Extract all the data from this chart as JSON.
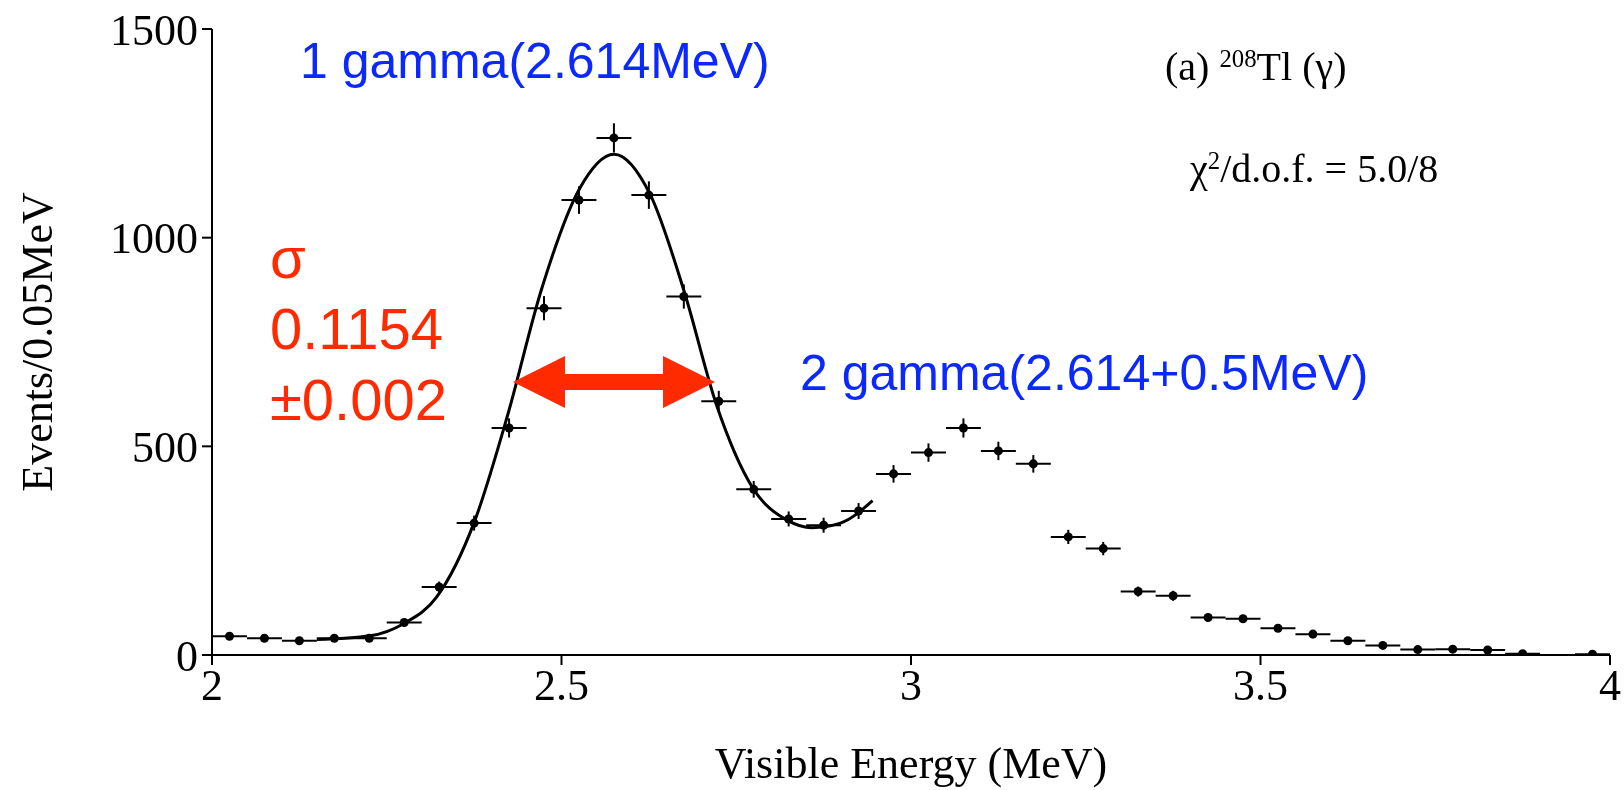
{
  "chart_data": {
    "type": "scatter",
    "xlabel": "Visible Energy (MeV)",
    "ylabel": "Events/0.05MeV",
    "annotations": [
      "1 gamma(2.614MeV)",
      "2 gamma(2.614+0.5MeV)",
      "(a)  $^{208}$Tl (γ)",
      "χ$^{2}$/d.o.f. = 5.0/8",
      "σ\n0.1154\n±0.002"
    ],
    "xlim": [
      2,
      4
    ],
    "ylim": [
      0,
      1500
    ],
    "xticks": [
      2,
      2.5,
      3,
      3.5,
      4
    ],
    "yticks": [
      0,
      500,
      1000,
      1500
    ],
    "series": [
      {
        "type": "scatter",
        "color": "#000000",
        "marker": "circle",
        "x": [
          2.025,
          2.075,
          2.125,
          2.175,
          2.225,
          2.275,
          2.325,
          2.375,
          2.425,
          2.475,
          2.525,
          2.575,
          2.625,
          2.675,
          2.725,
          2.775,
          2.825,
          2.875,
          2.925,
          2.975,
          3.025,
          3.075,
          3.125,
          3.175,
          3.225,
          3.275,
          3.325,
          3.375,
          3.425,
          3.475,
          3.525,
          3.575,
          3.625,
          3.675,
          3.725,
          3.775,
          3.825,
          3.875,
          3.925,
          3.975
        ],
        "values": [
          45,
          40,
          34,
          40,
          40,
          78,
          163,
          316,
          544,
          831,
          1090,
          1239,
          1102,
          859,
          608,
          397,
          326,
          311,
          345,
          434,
          485,
          544,
          489,
          458,
          283,
          255,
          152,
          142,
          90,
          87,
          64,
          50,
          34,
          23,
          13,
          14,
          12,
          3,
          null,
          2
        ],
        "errors": [
          7,
          6,
          6,
          6,
          6,
          9,
          13,
          18,
          23,
          29,
          33,
          35,
          33,
          29,
          25,
          20,
          18,
          18,
          19,
          21,
          22,
          23,
          22,
          21,
          17,
          16,
          12,
          12,
          9,
          9,
          8,
          7,
          6,
          5,
          4,
          4,
          3,
          2,
          null,
          1
        ],
        "xerrors": [
          0.025,
          0.025,
          0.025,
          0.025,
          0.025,
          0.025,
          0.025,
          0.025,
          0.025,
          0.025,
          0.025,
          0.025,
          0.025,
          0.025,
          0.025,
          0.025,
          0.025,
          0.025,
          0.025,
          0.025,
          0.025,
          0.025,
          0.025,
          0.025,
          0.025,
          0.025,
          0.025,
          0.025,
          0.025,
          0.025,
          0.025,
          0.025,
          0.025,
          0.025,
          0.025,
          0.025,
          0.025,
          0.025,
          null,
          0.025
        ]
      },
      {
        "type": "line",
        "color": "#000000",
        "marker": "none",
        "line_style": "solid",
        "x": [
          2.15,
          2.226,
          2.274,
          2.321,
          2.376,
          2.423,
          2.471,
          2.525,
          2.575,
          2.627,
          2.675,
          2.722,
          2.773,
          2.824,
          2.858,
          2.899,
          2.945
        ],
        "values": [
          37,
          46,
          75,
          138,
          322,
          575,
          874,
          1115,
          1200,
          1103,
          874,
          598,
          402,
          322,
          305,
          316,
          370
        ]
      }
    ]
  }
}
